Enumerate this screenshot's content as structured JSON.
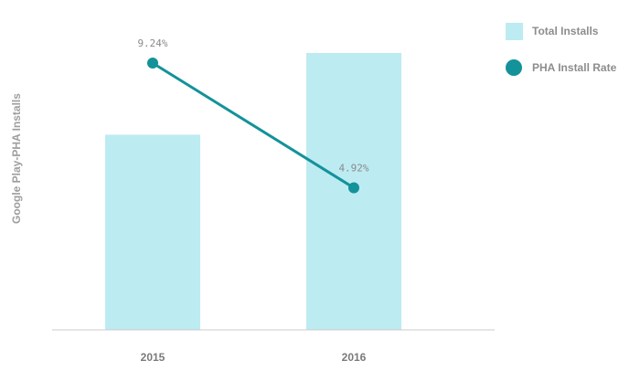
{
  "chart_data": {
    "type": "bar",
    "title": "",
    "xlabel": "",
    "ylabel": "Google Play-PHA Installs",
    "categories": [
      "2015",
      "2016"
    ],
    "bar_series": {
      "name": "Total Installs",
      "values": [
        0.705,
        1.0
      ]
    },
    "line_series": {
      "name": "PHA Install Rate",
      "values": [
        9.24,
        4.92
      ],
      "labels": [
        "9.24%",
        "4.92%"
      ],
      "ylim": [
        0,
        10
      ]
    },
    "grid": false,
    "legend_position": "top-right",
    "colors": {
      "bar": "#bdebf2",
      "line": "#13929a",
      "axis": "#cccccc"
    }
  }
}
